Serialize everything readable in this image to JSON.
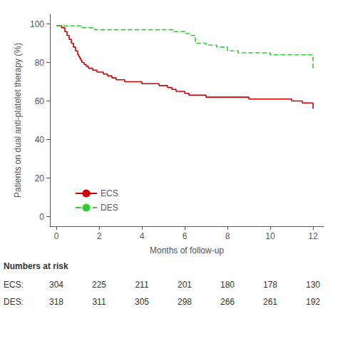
{
  "chart_data": {
    "type": "line",
    "xlabel": "Months of follow-up",
    "ylabel": "Patients on dual anti-platelet therapy (%)",
    "xlim": [
      -0.3,
      12.5
    ],
    "ylim": [
      -5,
      105
    ],
    "xticks": [
      0,
      2,
      4,
      6,
      8,
      10,
      12
    ],
    "yticks": [
      0,
      20,
      40,
      60,
      80,
      100
    ],
    "grid": false,
    "legend": "lower left",
    "series": [
      {
        "name": "ECS",
        "color": "#cc0000",
        "line_style": "solid",
        "x": [
          0.0,
          0.25,
          0.4,
          0.5,
          0.6,
          0.7,
          0.8,
          0.9,
          1.0,
          1.05,
          1.1,
          1.15,
          1.2,
          1.3,
          1.4,
          1.5,
          1.6,
          1.7,
          1.8,
          1.9,
          2.0,
          2.2,
          2.4,
          2.6,
          2.8,
          3.0,
          3.2,
          3.4,
          3.6,
          3.8,
          4.0,
          4.2,
          4.4,
          4.6,
          4.8,
          5.0,
          5.2,
          5.4,
          5.6,
          5.8,
          6.0,
          6.2,
          6.4,
          6.6,
          6.8,
          7.0,
          7.5,
          8.0,
          8.5,
          9.0,
          9.5,
          10.0,
          10.5,
          11.0,
          11.5,
          12.0
        ],
        "values": [
          99,
          98,
          96,
          94,
          92,
          90,
          88,
          86,
          84,
          83,
          82,
          81,
          80,
          79,
          78,
          77,
          77,
          76,
          76,
          75,
          75,
          74,
          73,
          72,
          71,
          71,
          70,
          70,
          70,
          70,
          69,
          69,
          69,
          69,
          68,
          68,
          67,
          66,
          65,
          65,
          64,
          63,
          63,
          63,
          63,
          62,
          62,
          62,
          62,
          61,
          61,
          61,
          61,
          60,
          59,
          56
        ]
      },
      {
        "name": "DES",
        "color": "#33cc33",
        "line_style": "dashed",
        "x": [
          0.0,
          0.3,
          0.6,
          0.9,
          1.2,
          1.5,
          1.8,
          2.5,
          3.5,
          4.5,
          5.0,
          5.5,
          5.8,
          6.0,
          6.3,
          6.5,
          7.0,
          7.5,
          8.0,
          8.5,
          9.0,
          9.5,
          10.0,
          10.5,
          11.0,
          11.5,
          12.0
        ],
        "values": [
          99,
          99,
          99,
          99,
          98,
          98,
          97,
          97,
          97,
          97,
          97,
          96,
          96,
          95,
          94,
          90,
          89,
          88,
          86,
          85,
          85,
          85,
          84,
          84,
          84,
          84,
          76
        ]
      }
    ],
    "numbers_at_risk": {
      "label": "Numbers at risk",
      "x": [
        0,
        2,
        4,
        6,
        8,
        10,
        12
      ],
      "rows": [
        {
          "label": "ECS:",
          "values": [
            304,
            225,
            211,
            201,
            180,
            178,
            130
          ]
        },
        {
          "label": "DES:",
          "values": [
            318,
            311,
            305,
            298,
            266,
            261,
            192
          ]
        }
      ]
    }
  }
}
